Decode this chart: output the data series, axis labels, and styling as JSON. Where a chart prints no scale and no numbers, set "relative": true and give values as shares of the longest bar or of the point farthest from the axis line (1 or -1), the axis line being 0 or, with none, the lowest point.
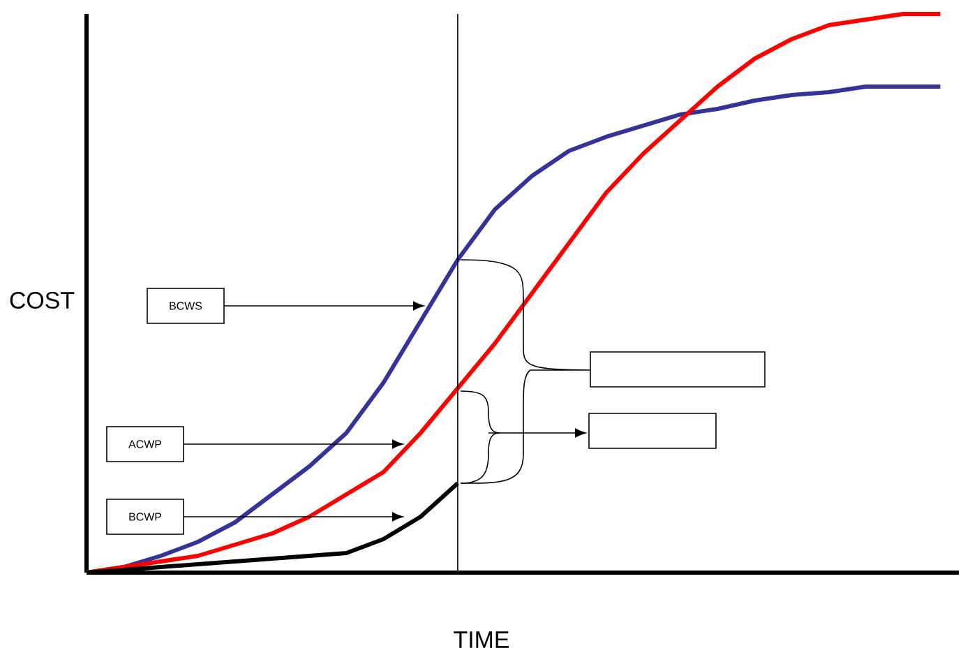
{
  "chart_data": {
    "type": "line",
    "relative": true,
    "xlabel": "TIME",
    "ylabel": "COST",
    "categories": [
      null,
      null,
      null,
      null,
      null,
      null,
      null,
      null,
      null,
      null,
      null,
      null,
      null,
      null,
      null,
      null,
      null,
      null,
      null,
      null,
      null,
      null,
      null,
      null
    ],
    "series": [
      {
        "color": "#333399",
        "values": [
          0,
          0.01,
          0.03,
          0.055,
          0.09,
          0.14,
          0.19,
          0.25,
          0.34,
          0.45,
          0.56,
          0.65,
          0.71,
          0.755,
          0.78,
          0.8,
          0.82,
          0.83,
          0.845,
          0.855,
          0.86,
          0.87,
          0.87,
          0.87
        ]
      },
      {
        "color": "#ff0000",
        "values": [
          0,
          0.01,
          0.02,
          0.03,
          0.05,
          0.07,
          0.1,
          0.14,
          0.18,
          0.25,
          0.33,
          0.41,
          0.5,
          0.59,
          0.68,
          0.75,
          0.81,
          0.87,
          0.92,
          0.955,
          0.98,
          0.99,
          1.0,
          1.0
        ]
      },
      {
        "color": "#000000",
        "values": [
          0,
          0.005,
          0.01,
          0.015,
          0.02,
          0.025,
          0.03,
          0.035,
          0.06,
          0.1,
          0.16,
          null,
          null,
          null,
          null,
          null,
          null,
          null,
          null,
          null,
          null,
          null,
          null,
          null
        ]
      }
    ],
    "annotations": [
      "BCWS",
      "ACWP",
      "BCWP"
    ]
  }
}
